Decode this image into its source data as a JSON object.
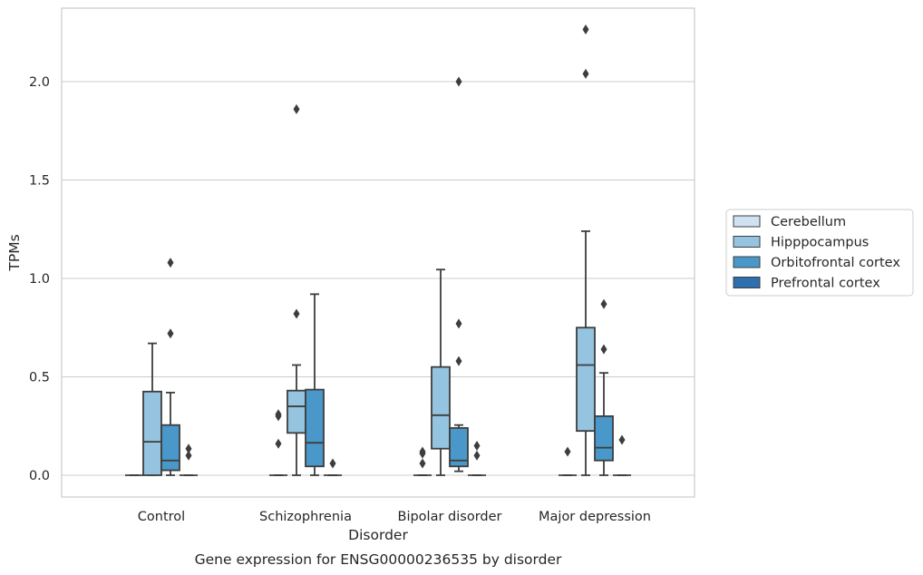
{
  "chart_data": {
    "type": "box",
    "title": "",
    "caption": "Gene expression for ENSG00000236535 by disorder",
    "xlabel": "Disorder",
    "ylabel": "TPMs",
    "ylim": [
      -0.11,
      2.38
    ],
    "yticks": [
      0.0,
      0.5,
      1.0,
      1.5,
      2.0
    ],
    "ytick_labels": [
      "0.0",
      "0.5",
      "1.0",
      "1.5",
      "2.0"
    ],
    "grid": "horizontal",
    "legend_position": "right",
    "categories": [
      "Control",
      "Schizophrenia",
      "Bipolar disorder",
      "Major depression"
    ],
    "series": [
      {
        "name": "Cerebellum",
        "color": "#d0e1f2",
        "boxes": [
          {
            "min": 0,
            "q1": 0,
            "median": 0,
            "q3": 0,
            "max": 0,
            "outliers": []
          },
          {
            "min": 0,
            "q1": 0,
            "median": 0,
            "q3": 0,
            "max": 0,
            "outliers": [
              0.16,
              0.3,
              0.31
            ]
          },
          {
            "min": 0,
            "q1": 0,
            "median": 0,
            "q3": 0,
            "max": 0,
            "outliers": [
              0.06,
              0.11,
              0.12
            ]
          },
          {
            "min": 0,
            "q1": 0,
            "median": 0,
            "q3": 0,
            "max": 0,
            "outliers": [
              0.12
            ]
          }
        ]
      },
      {
        "name": "Hipppocampus",
        "color": "#94c4df",
        "boxes": [
          {
            "min": 0,
            "q1": 0,
            "median": 0.17,
            "q3": 0.425,
            "max": 0.67,
            "outliers": []
          },
          {
            "min": 0,
            "q1": 0.215,
            "median": 0.35,
            "q3": 0.43,
            "max": 0.56,
            "outliers": [
              0.82,
              1.86
            ]
          },
          {
            "min": 0,
            "q1": 0.135,
            "median": 0.305,
            "q3": 0.55,
            "max": 1.045,
            "outliers": []
          },
          {
            "min": 0,
            "q1": 0.225,
            "median": 0.56,
            "q3": 0.75,
            "max": 1.24,
            "outliers": [
              2.04,
              2.265
            ]
          }
        ]
      },
      {
        "name": "Orbitofrontal cortex",
        "color": "#4a98c9",
        "boxes": [
          {
            "min": 0,
            "q1": 0.025,
            "median": 0.075,
            "q3": 0.255,
            "max": 0.42,
            "outliers": [
              0.72,
              1.08
            ]
          },
          {
            "min": 0,
            "q1": 0.045,
            "median": 0.165,
            "q3": 0.435,
            "max": 0.92,
            "outliers": []
          },
          {
            "min": 0.02,
            "q1": 0.045,
            "median": 0.075,
            "q3": 0.24,
            "max": 0.255,
            "outliers": [
              0.58,
              0.77,
              2.0
            ]
          },
          {
            "min": 0,
            "q1": 0.075,
            "median": 0.14,
            "q3": 0.3,
            "max": 0.52,
            "outliers": [
              0.64,
              0.87
            ]
          }
        ]
      },
      {
        "name": "Prefrontal cortex",
        "color": "#2e6fae",
        "boxes": [
          {
            "min": 0,
            "q1": 0,
            "median": 0,
            "q3": 0,
            "max": 0,
            "outliers": [
              0.1,
              0.135
            ]
          },
          {
            "min": 0,
            "q1": 0,
            "median": 0,
            "q3": 0,
            "max": 0,
            "outliers": [
              0.06
            ]
          },
          {
            "min": 0,
            "q1": 0,
            "median": 0,
            "q3": 0,
            "max": 0,
            "outliers": [
              0.1,
              0.15
            ]
          },
          {
            "min": 0,
            "q1": 0,
            "median": 0,
            "q3": 0,
            "max": 0,
            "outliers": [
              0.18
            ]
          }
        ]
      }
    ]
  }
}
